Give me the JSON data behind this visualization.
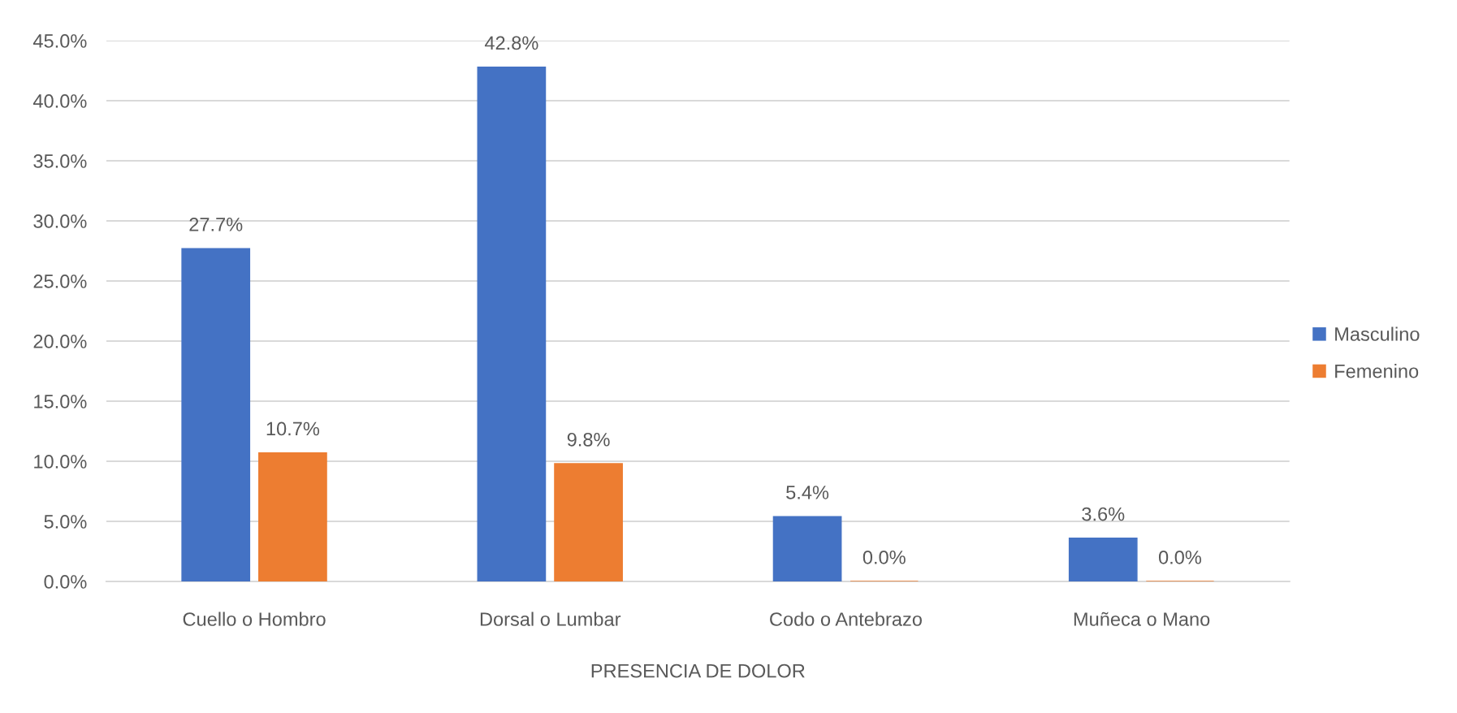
{
  "chart_data": {
    "type": "bar",
    "xlabel": "PRESENCIA DE DOLOR",
    "categories": [
      "Cuello o Hombro",
      "Dorsal o Lumbar",
      "Codo o Antebrazo",
      "Muñeca o Mano"
    ],
    "series": [
      {
        "name": "Masculino",
        "color": "#4472c4",
        "values": [
          27.7,
          42.8,
          5.4,
          3.6
        ],
        "value_labels": [
          "27.7%",
          "42.8%",
          "5.4%",
          "3.6%"
        ]
      },
      {
        "name": "Femenino",
        "color": "#ed7d31",
        "values": [
          10.7,
          9.8,
          0.0,
          0.0
        ],
        "value_labels": [
          "10.7%",
          "9.8%",
          "0.0%",
          "0.0%"
        ]
      }
    ],
    "ylim": [
      0,
      45
    ],
    "yticks": [
      {
        "value": 0,
        "label": "0.0%"
      },
      {
        "value": 5,
        "label": "5.0%"
      },
      {
        "value": 10,
        "label": "10.0%"
      },
      {
        "value": 15,
        "label": "15.0%"
      },
      {
        "value": 20,
        "label": "20.0%"
      },
      {
        "value": 25,
        "label": "25.0%"
      },
      {
        "value": 30,
        "label": "30.0%"
      },
      {
        "value": 35,
        "label": "35.0%"
      },
      {
        "value": 40,
        "label": "40.0%"
      },
      {
        "value": 45,
        "label": "45.0%"
      }
    ],
    "grid": "y",
    "legend": "right"
  }
}
